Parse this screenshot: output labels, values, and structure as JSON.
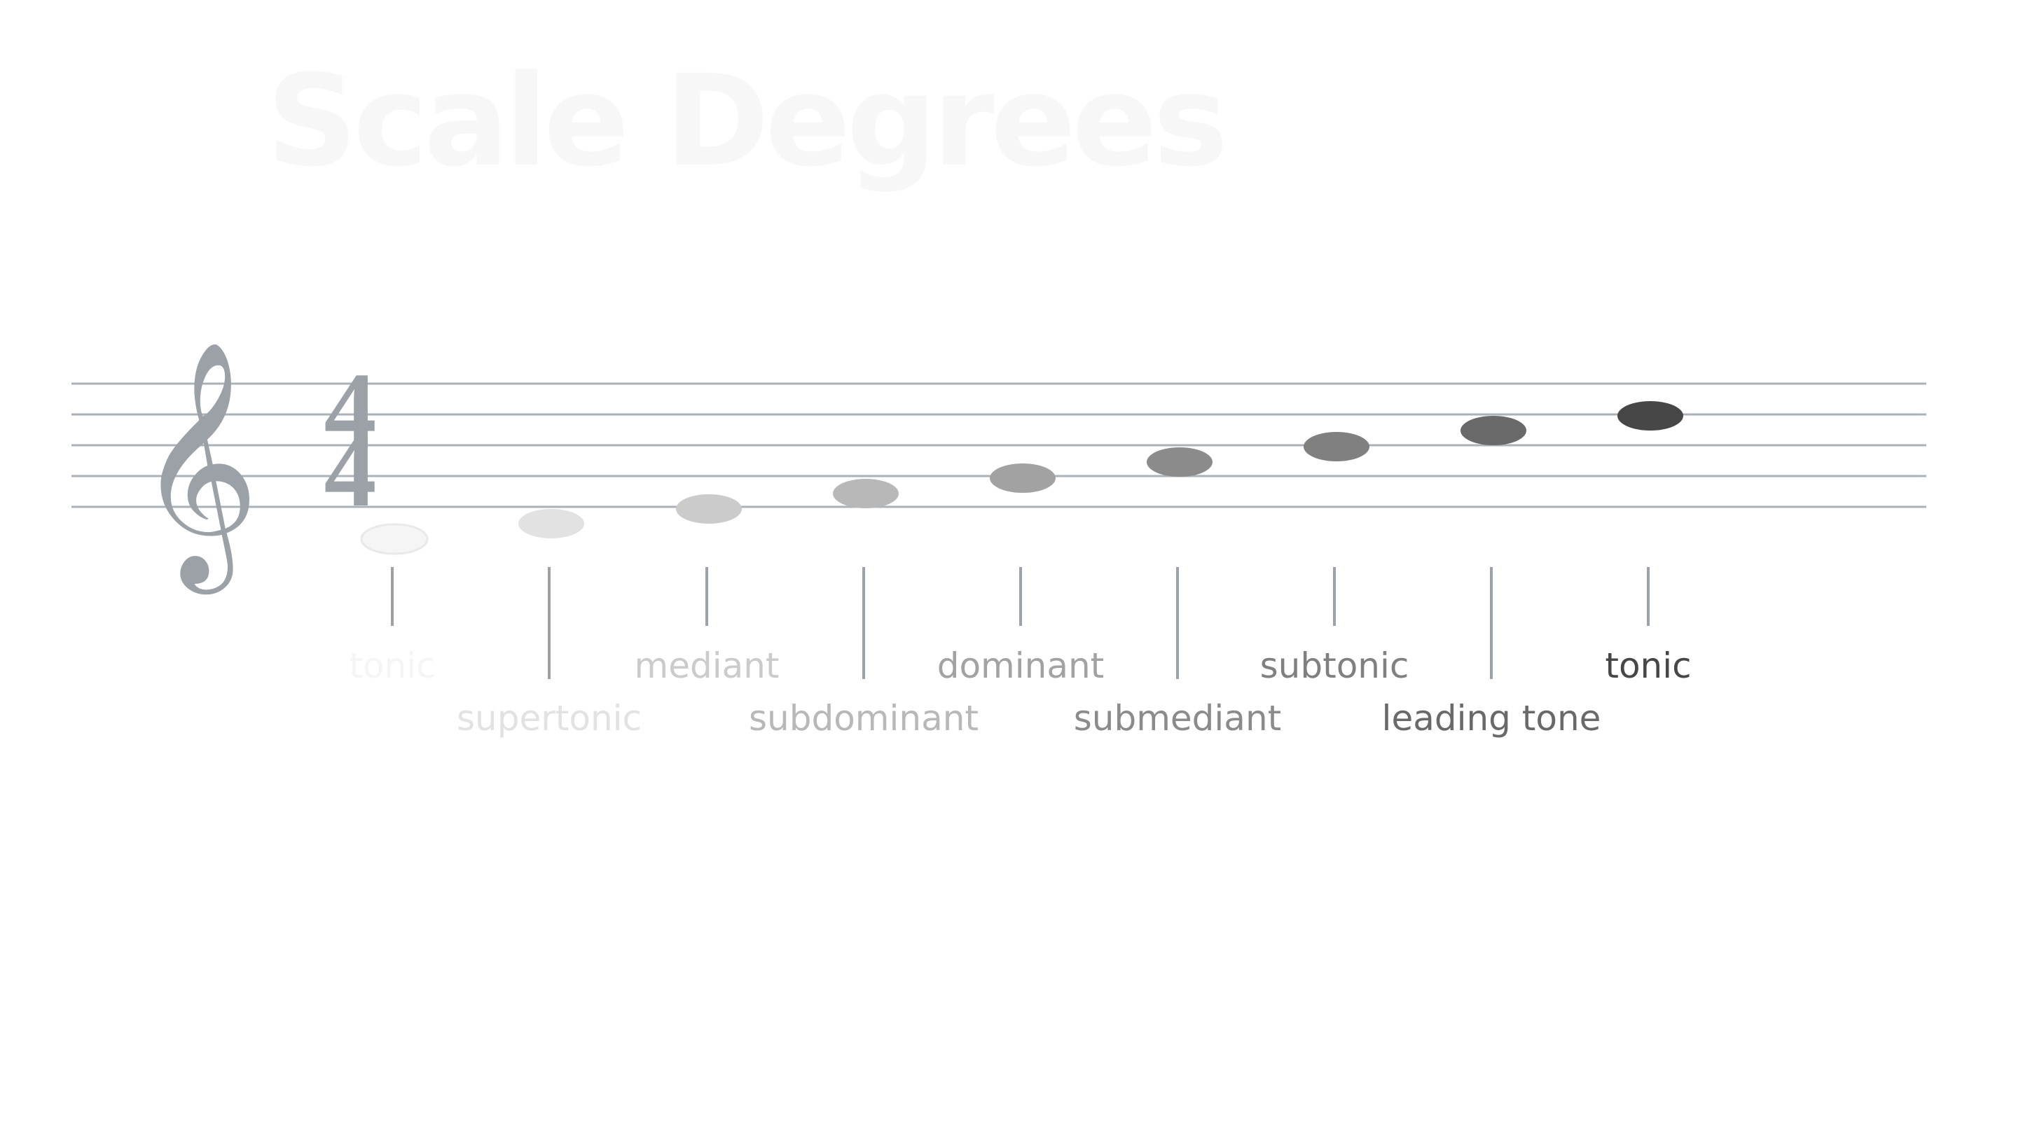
{
  "title": "Scale Degrees",
  "clef_symbol": "𝄞",
  "time_signature": {
    "top": "4",
    "bottom": "4"
  },
  "colors": {
    "staff_line": "#a9b2b8",
    "clef": "#9ba1a6",
    "connector": "#9aa1a7",
    "title": "#f7f7f7"
  },
  "degrees": [
    {
      "label": "tonic",
      "color": "#f5f5f5",
      "row": "top"
    },
    {
      "label": "supertonic",
      "color": "#e2e2e2",
      "row": "bottom"
    },
    {
      "label": "mediant",
      "color": "#cbcbcb",
      "row": "top"
    },
    {
      "label": "subdominant",
      "color": "#b8b8b8",
      "row": "bottom"
    },
    {
      "label": "dominant",
      "color": "#a2a2a2",
      "row": "top"
    },
    {
      "label": "submediant",
      "color": "#8b8b8b",
      "row": "bottom"
    },
    {
      "label": "subtonic",
      "color": "#808080",
      "row": "top"
    },
    {
      "label": "leading tone",
      "color": "#696969",
      "row": "bottom"
    },
    {
      "label": "tonic",
      "color": "#474747",
      "row": "top"
    }
  ]
}
